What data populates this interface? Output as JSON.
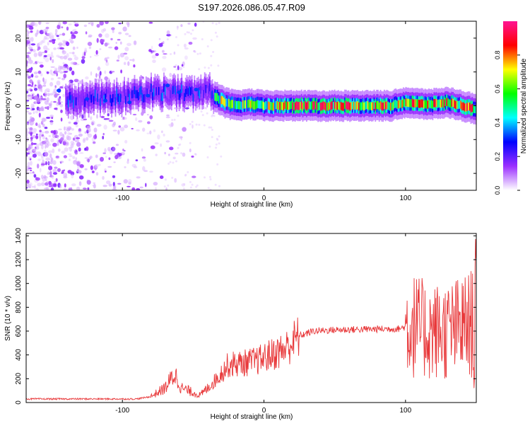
{
  "title": "S197.2026.086.05.47.R09",
  "chart_data": [
    {
      "type": "heatmap",
      "xlabel": "Height of straight line (km)",
      "ylabel": "Frequency (Hz)",
      "xlim": [
        -168,
        150
      ],
      "ylim": [
        -25,
        25
      ],
      "xticks": [
        -100,
        0,
        100
      ],
      "yticks": [
        -20,
        -10,
        0,
        10,
        20
      ],
      "colorbar": {
        "label": "Normalized spectral amplitude",
        "range": [
          0,
          1
        ],
        "ticks": [
          "0.0",
          "0.2",
          "0.4",
          "0.6",
          "0.8"
        ],
        "colors": [
          "#ffffff",
          "#9b30ff",
          "#0000ff",
          "#00ffff",
          "#00ff00",
          "#ffff00",
          "#ff0000",
          "#ff1493"
        ]
      },
      "ridge": [
        {
          "x": -130,
          "y": 2
        },
        {
          "x": -100,
          "y": 2.5
        },
        {
          "x": -80,
          "y": 4
        },
        {
          "x": -65,
          "y": 4
        },
        {
          "x": -50,
          "y": 3.5
        },
        {
          "x": -40,
          "y": 4.5
        },
        {
          "x": -35,
          "y": 3
        },
        {
          "x": -28,
          "y": 1
        },
        {
          "x": -20,
          "y": 0
        },
        {
          "x": -10,
          "y": 0.5
        },
        {
          "x": 0,
          "y": 0
        },
        {
          "x": 20,
          "y": 0
        },
        {
          "x": 60,
          "y": 0
        },
        {
          "x": 90,
          "y": 0
        },
        {
          "x": 100,
          "y": 1
        },
        {
          "x": 110,
          "y": 0.5
        },
        {
          "x": 120,
          "y": 0.5
        },
        {
          "x": 130,
          "y": 1
        },
        {
          "x": 140,
          "y": 0
        },
        {
          "x": 150,
          "y": -1
        }
      ]
    },
    {
      "type": "line",
      "xlabel": "Height of straight line (km)",
      "ylabel": "SNR (10 * v/v)",
      "xlim": [
        -168,
        150
      ],
      "ylim": [
        0,
        1420
      ],
      "xticks": [
        -100,
        0,
        100
      ],
      "yticks": [
        0,
        200,
        400,
        600,
        800,
        1000,
        1200,
        1400
      ],
      "series_color": "#e8383a",
      "envelope": [
        {
          "x": -168,
          "y": 30
        },
        {
          "x": -90,
          "y": 30
        },
        {
          "x": -80,
          "y": 50
        },
        {
          "x": -70,
          "y": 120
        },
        {
          "x": -63,
          "y": 240
        },
        {
          "x": -58,
          "y": 120
        },
        {
          "x": -45,
          "y": 60
        },
        {
          "x": -35,
          "y": 180
        },
        {
          "x": -25,
          "y": 320
        },
        {
          "x": -15,
          "y": 330
        },
        {
          "x": -5,
          "y": 350
        },
        {
          "x": 5,
          "y": 400
        },
        {
          "x": 15,
          "y": 450
        },
        {
          "x": 25,
          "y": 560
        },
        {
          "x": 35,
          "y": 600
        },
        {
          "x": 50,
          "y": 610
        },
        {
          "x": 70,
          "y": 615
        },
        {
          "x": 95,
          "y": 620
        },
        {
          "x": 105,
          "y": 650
        },
        {
          "x": 115,
          "y": 600
        },
        {
          "x": 130,
          "y": 600
        },
        {
          "x": 145,
          "y": 650
        },
        {
          "x": 150,
          "y": 700
        }
      ]
    }
  ]
}
